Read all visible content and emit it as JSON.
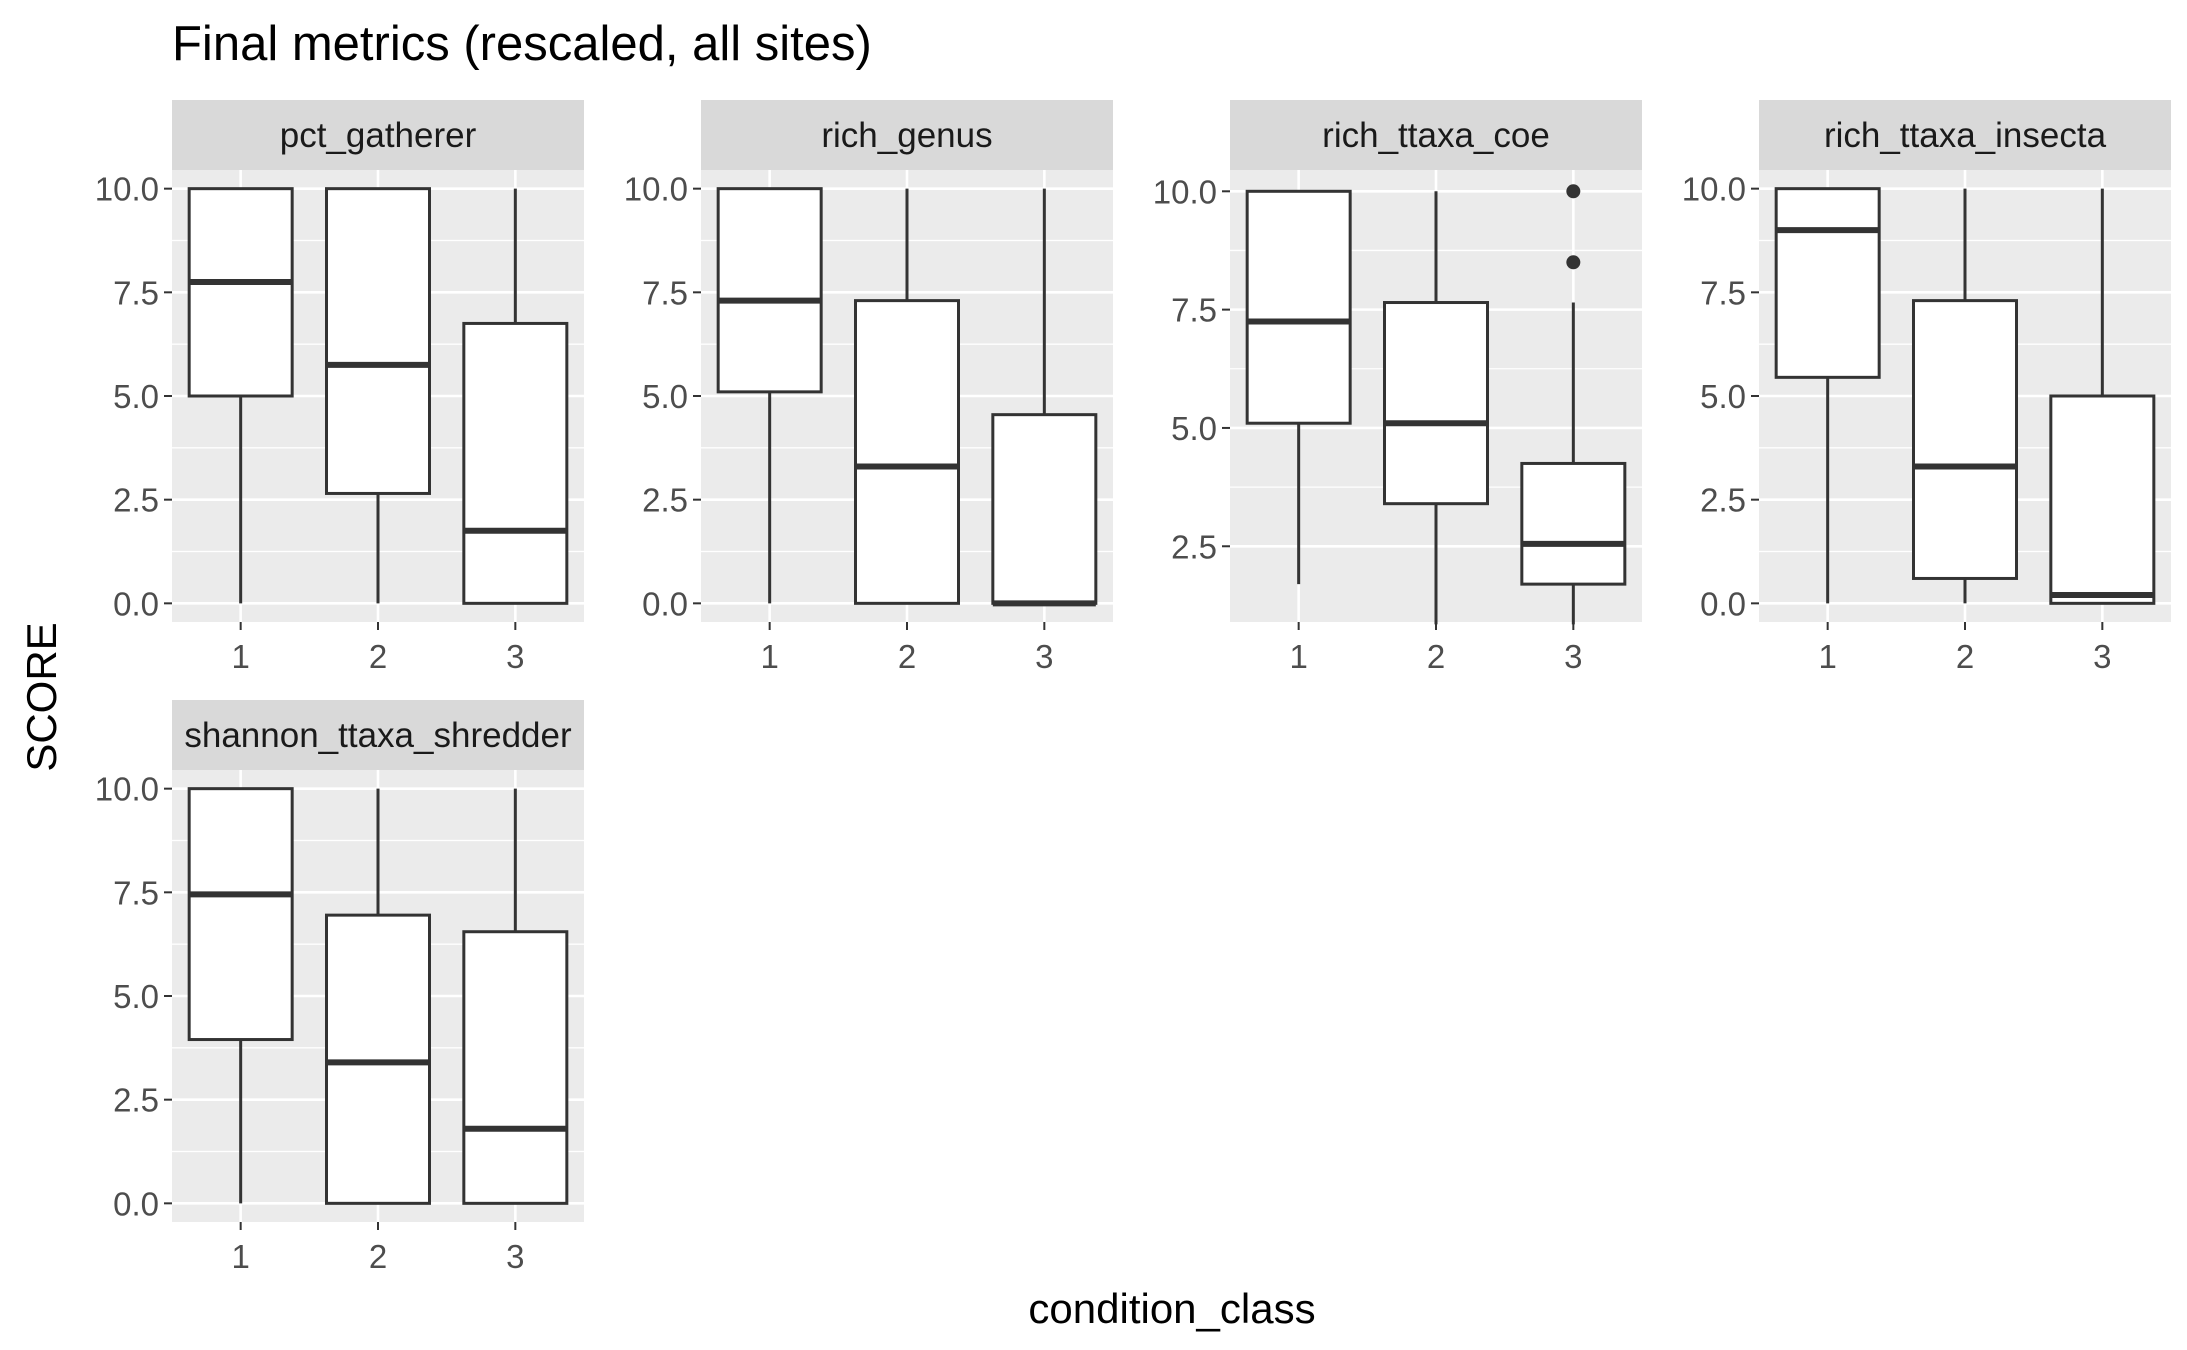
{
  "chart_data": {
    "type": "box",
    "title": "Final metrics (rescaled, all sites)",
    "xlabel": "condition_class",
    "ylabel": "SCORE",
    "facets": [
      {
        "name": "pct_gatherer",
        "ylim": [
          -0.45,
          10.45
        ],
        "yticks": [
          "0.0",
          "2.5",
          "5.0",
          "7.5",
          "10.0"
        ],
        "categories": [
          "1",
          "2",
          "3"
        ],
        "boxes": [
          {
            "category": "1",
            "whisker_low": 0,
            "q1": 5.0,
            "median": 7.75,
            "q3": 10.0,
            "whisker_high": 10.0,
            "outliers": []
          },
          {
            "category": "2",
            "whisker_low": 0,
            "q1": 2.65,
            "median": 5.75,
            "q3": 10.0,
            "whisker_high": 10.0,
            "outliers": []
          },
          {
            "category": "3",
            "whisker_low": 0,
            "q1": 0.0,
            "median": 1.75,
            "q3": 6.75,
            "whisker_high": 10.0,
            "outliers": []
          }
        ]
      },
      {
        "name": "rich_genus",
        "ylim": [
          -0.45,
          10.45
        ],
        "yticks": [
          "0.0",
          "2.5",
          "5.0",
          "7.5",
          "10.0"
        ],
        "categories": [
          "1",
          "2",
          "3"
        ],
        "boxes": [
          {
            "category": "1",
            "whisker_low": 0,
            "q1": 5.1,
            "median": 7.3,
            "q3": 10.0,
            "whisker_high": 10.0,
            "outliers": []
          },
          {
            "category": "2",
            "whisker_low": 0,
            "q1": 0.0,
            "median": 3.3,
            "q3": 7.3,
            "whisker_high": 10.0,
            "outliers": []
          },
          {
            "category": "3",
            "whisker_low": 0,
            "q1": 0.0,
            "median": 0.0,
            "q3": 4.55,
            "whisker_high": 10.0,
            "outliers": []
          }
        ]
      },
      {
        "name": "rich_ttaxa_coe",
        "ylim": [
          0.9,
          10.45
        ],
        "yticks": [
          "2.5",
          "5.0",
          "7.5",
          "10.0"
        ],
        "categories": [
          "1",
          "2",
          "3"
        ],
        "boxes": [
          {
            "category": "1",
            "whisker_low": 1.7,
            "q1": 5.1,
            "median": 7.25,
            "q3": 10.0,
            "whisker_high": 10.0,
            "outliers": []
          },
          {
            "category": "2",
            "whisker_low": 0.85,
            "q1": 3.4,
            "median": 5.1,
            "q3": 7.65,
            "whisker_high": 10.0,
            "outliers": []
          },
          {
            "category": "3",
            "whisker_low": 0.85,
            "q1": 1.7,
            "median": 2.55,
            "q3": 4.25,
            "whisker_high": 7.65,
            "outliers": [
              8.5,
              10.0
            ]
          }
        ]
      },
      {
        "name": "rich_ttaxa_insecta",
        "ylim": [
          -0.45,
          10.45
        ],
        "yticks": [
          "0.0",
          "2.5",
          "5.0",
          "7.5",
          "10.0"
        ],
        "categories": [
          "1",
          "2",
          "3"
        ],
        "boxes": [
          {
            "category": "1",
            "whisker_low": 0,
            "q1": 5.45,
            "median": 9.0,
            "q3": 10.0,
            "whisker_high": 10.0,
            "outliers": []
          },
          {
            "category": "2",
            "whisker_low": 0,
            "q1": 0.6,
            "median": 3.3,
            "q3": 7.3,
            "whisker_high": 10.0,
            "outliers": []
          },
          {
            "category": "3",
            "whisker_low": 0,
            "q1": 0.0,
            "median": 0.2,
            "q3": 5.0,
            "whisker_high": 10.0,
            "outliers": []
          }
        ]
      },
      {
        "name": "shannon_ttaxa_shredder",
        "ylim": [
          -0.45,
          10.45
        ],
        "yticks": [
          "0.0",
          "2.5",
          "5.0",
          "7.5",
          "10.0"
        ],
        "categories": [
          "1",
          "2",
          "3"
        ],
        "boxes": [
          {
            "category": "1",
            "whisker_low": 0,
            "q1": 3.95,
            "median": 7.45,
            "q3": 10.0,
            "whisker_high": 10.0,
            "outliers": []
          },
          {
            "category": "2",
            "whisker_low": 0,
            "q1": 0.0,
            "median": 3.4,
            "q3": 6.95,
            "whisker_high": 10.0,
            "outliers": []
          },
          {
            "category": "3",
            "whisker_low": 0,
            "q1": 0.0,
            "median": 1.8,
            "q3": 6.55,
            "whisker_high": 10.0,
            "outliers": []
          }
        ]
      }
    ],
    "colors": {
      "panel_background": "#ebebeb",
      "strip_background": "#d9d9d9",
      "gridline": "#ffffff",
      "box_stroke": "#333333",
      "box_fill": "#ffffff",
      "tick_text": "#4d4d4d",
      "text": "#000000"
    },
    "grid": true
  }
}
